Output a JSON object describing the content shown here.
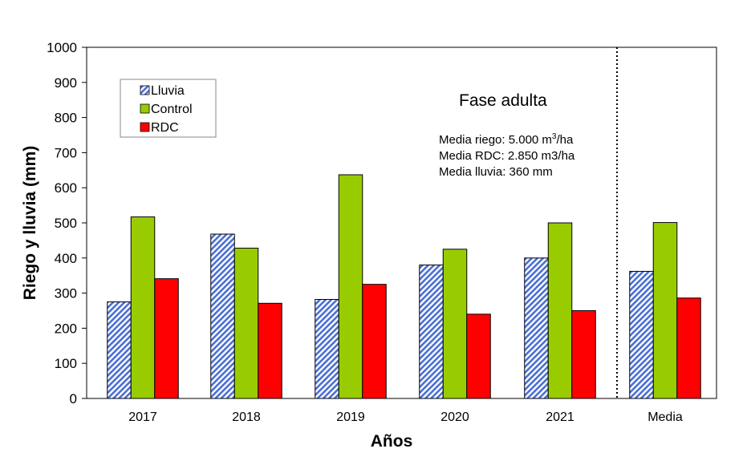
{
  "chart_data": {
    "type": "bar",
    "ylabel": "Riego y lluvia (mm)",
    "xlabel": "Años",
    "ylim": [
      0,
      1000
    ],
    "yticks": [
      0,
      100,
      200,
      300,
      400,
      500,
      600,
      700,
      800,
      900,
      1000
    ],
    "categories": [
      "2017",
      "2018",
      "2019",
      "2020",
      "2021",
      "Media"
    ],
    "series": [
      {
        "name": "Lluvia",
        "color": "#4a6fd4",
        "pattern": "diagonal-hatch",
        "values": [
          275,
          468,
          282,
          380,
          400,
          362
        ]
      },
      {
        "name": "Control",
        "color": "#99cc00",
        "values": [
          517,
          428,
          637,
          425,
          500,
          501
        ]
      },
      {
        "name": "RDC",
        "color": "#ff0000",
        "values": [
          341,
          271,
          325,
          240,
          250,
          286
        ]
      }
    ],
    "legend_position": "top-left",
    "separator": "dotted line between 2021 and Media",
    "annotation": {
      "title": "Fase adulta",
      "line1_prefix": "Media riego: 5.000 m",
      "line1_sup": "3",
      "line1_suffix": "/ha",
      "line2": "Media RDC: 2.850 m3/ha",
      "line3": "Media lluvia: 360 mm"
    }
  }
}
